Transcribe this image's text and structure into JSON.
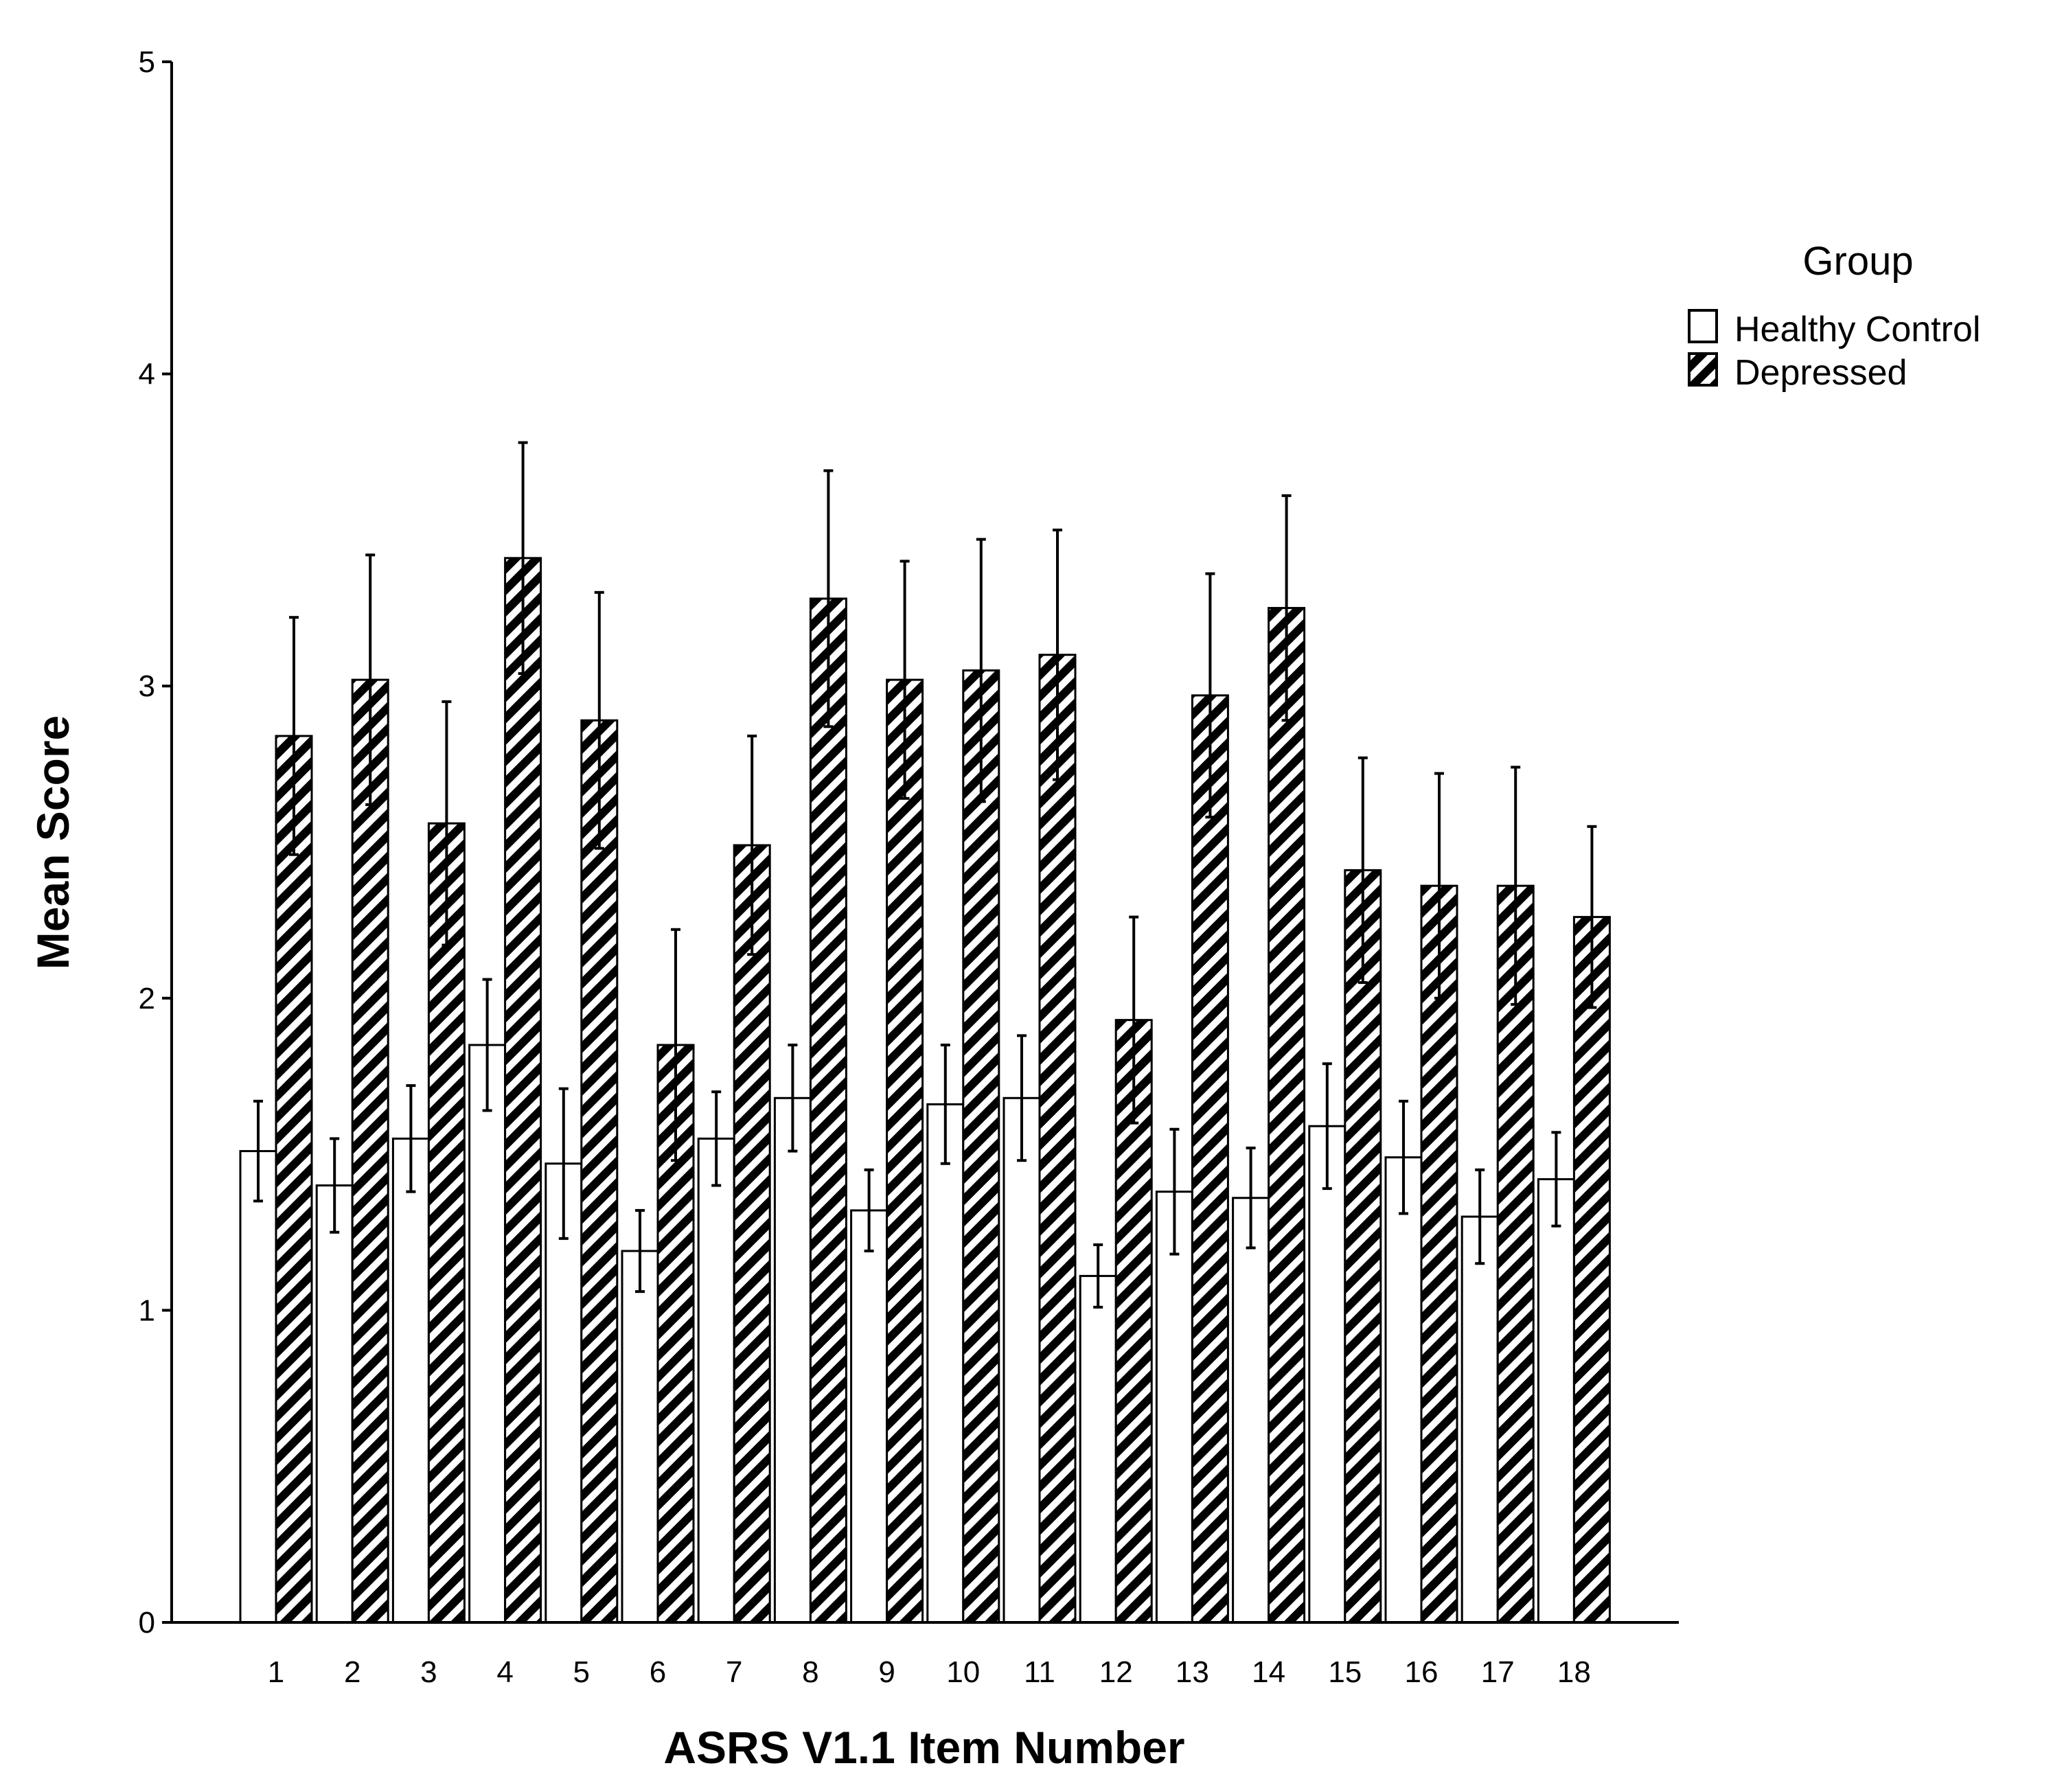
{
  "chart_data": {
    "type": "bar",
    "title": "",
    "xlabel": "ASRS V1.1 Item Number",
    "ylabel": "Mean Score",
    "ylim": [
      0,
      5
    ],
    "yticks": [
      "0",
      "1",
      "2",
      "3",
      "4",
      "5"
    ],
    "categories": [
      "1",
      "2",
      "3",
      "4",
      "5",
      "6",
      "7",
      "8",
      "9",
      "10",
      "11",
      "12",
      "13",
      "14",
      "15",
      "16",
      "17",
      "18"
    ],
    "legend": {
      "title": "Group",
      "position": "top-right"
    },
    "grid": false,
    "series": [
      {
        "name": "Healthy Control",
        "pattern": "none",
        "values": [
          1.51,
          1.4,
          1.55,
          1.85,
          1.47,
          1.19,
          1.55,
          1.68,
          1.32,
          1.66,
          1.68,
          1.11,
          1.38,
          1.36,
          1.59,
          1.49,
          1.3,
          1.42
        ],
        "error": [
          0.16,
          0.15,
          0.17,
          0.21,
          0.24,
          0.13,
          0.15,
          0.17,
          0.13,
          0.19,
          0.2,
          0.1,
          0.2,
          0.16,
          0.2,
          0.18,
          0.15,
          0.15
        ]
      },
      {
        "name": "Depressed",
        "pattern": "diagonal-hatch",
        "values": [
          2.84,
          3.02,
          2.56,
          3.41,
          2.89,
          1.85,
          2.49,
          3.28,
          3.02,
          3.05,
          3.1,
          1.93,
          2.97,
          3.25,
          2.41,
          2.36,
          2.36,
          2.26
        ],
        "error": [
          0.38,
          0.4,
          0.39,
          0.37,
          0.41,
          0.37,
          0.35,
          0.41,
          0.38,
          0.42,
          0.4,
          0.33,
          0.39,
          0.36,
          0.36,
          0.36,
          0.38,
          0.29
        ]
      }
    ]
  }
}
